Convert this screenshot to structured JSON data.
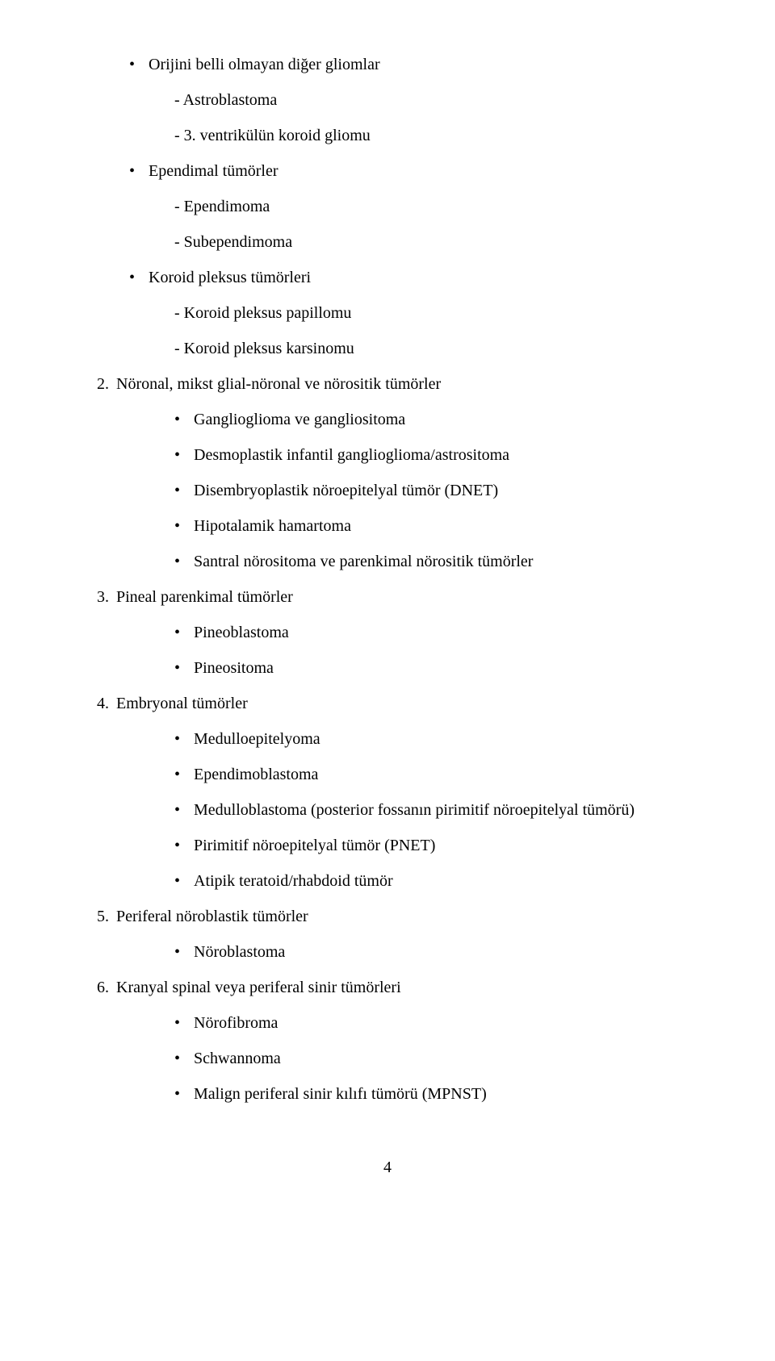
{
  "lines": [
    {
      "cls": "level1",
      "prefix": "•",
      "text": "Orijini belli olmayan diğer gliomlar"
    },
    {
      "cls": "level2",
      "prefix": "-",
      "text": "Astroblastoma"
    },
    {
      "cls": "level2",
      "prefix": "-",
      "text": "3. ventrikülün koroid gliomu"
    },
    {
      "cls": "level1",
      "prefix": "•",
      "text": "Ependimal tümörler"
    },
    {
      "cls": "level2",
      "prefix": "-",
      "text": "Ependimoma"
    },
    {
      "cls": "level2",
      "prefix": "-",
      "text": "Subependimoma"
    },
    {
      "cls": "level1",
      "prefix": "•",
      "text": "Koroid pleksus tümörleri"
    },
    {
      "cls": "level2",
      "prefix": "-",
      "text": "Koroid pleksus papillomu"
    },
    {
      "cls": "level2",
      "prefix": "-",
      "text": "Koroid pleksus karsinomu"
    },
    {
      "cls": "numbered",
      "prefix": "2.",
      "text": "Nöronal, mikst glial-nöronal ve nörositik tümörler"
    },
    {
      "cls": "level3",
      "prefix": "•",
      "text": "Ganglioglioma ve gangliositoma"
    },
    {
      "cls": "level3",
      "prefix": "•",
      "text": "Desmoplastik infantil ganglioglioma/astrositoma"
    },
    {
      "cls": "level3",
      "prefix": "•",
      "text": "Disembryoplastik nöroepitelyal tümör (DNET)"
    },
    {
      "cls": "level3",
      "prefix": "•",
      "text": "Hipotalamik hamartoma"
    },
    {
      "cls": "level3",
      "prefix": "•",
      "text": "Santral nörositoma ve parenkimal nörositik tümörler"
    },
    {
      "cls": "numbered",
      "prefix": "3.",
      "text": "Pineal parenkimal tümörler"
    },
    {
      "cls": "level3",
      "prefix": "•",
      "text": "Pineoblastoma"
    },
    {
      "cls": "level3",
      "prefix": "•",
      "text": "Pineositoma"
    },
    {
      "cls": "numbered",
      "prefix": "4.",
      "text": "Embryonal tümörler"
    },
    {
      "cls": "level3",
      "prefix": "•",
      "text": "Medulloepitelyoma"
    },
    {
      "cls": "level3",
      "prefix": "•",
      "text": "Ependimoblastoma"
    },
    {
      "cls": "level3",
      "prefix": "•",
      "text": "Medulloblastoma (posterior fossanın pirimitif nöroepitelyal tümörü)"
    },
    {
      "cls": "level3",
      "prefix": "•",
      "text": "Pirimitif nöroepitelyal tümör (PNET)"
    },
    {
      "cls": "level3",
      "prefix": "•",
      "text": "Atipik teratoid/rhabdoid tümör"
    },
    {
      "cls": "numbered",
      "prefix": "5.",
      "text": "Periferal nöroblastik tümörler"
    },
    {
      "cls": "level3",
      "prefix": "•",
      "text": "Nöroblastoma"
    },
    {
      "cls": "numbered",
      "prefix": "6.",
      "text": "Kranyal spinal veya periferal sinir tümörleri"
    },
    {
      "cls": "level3",
      "prefix": "•",
      "text": "Nörofibroma"
    },
    {
      "cls": "level3",
      "prefix": "•",
      "text": "Schwannoma"
    },
    {
      "cls": "level3",
      "prefix": "•",
      "text": "Malign periferal sinir kılıfı tümörü (MPNST)"
    }
  ],
  "page_number": "4"
}
